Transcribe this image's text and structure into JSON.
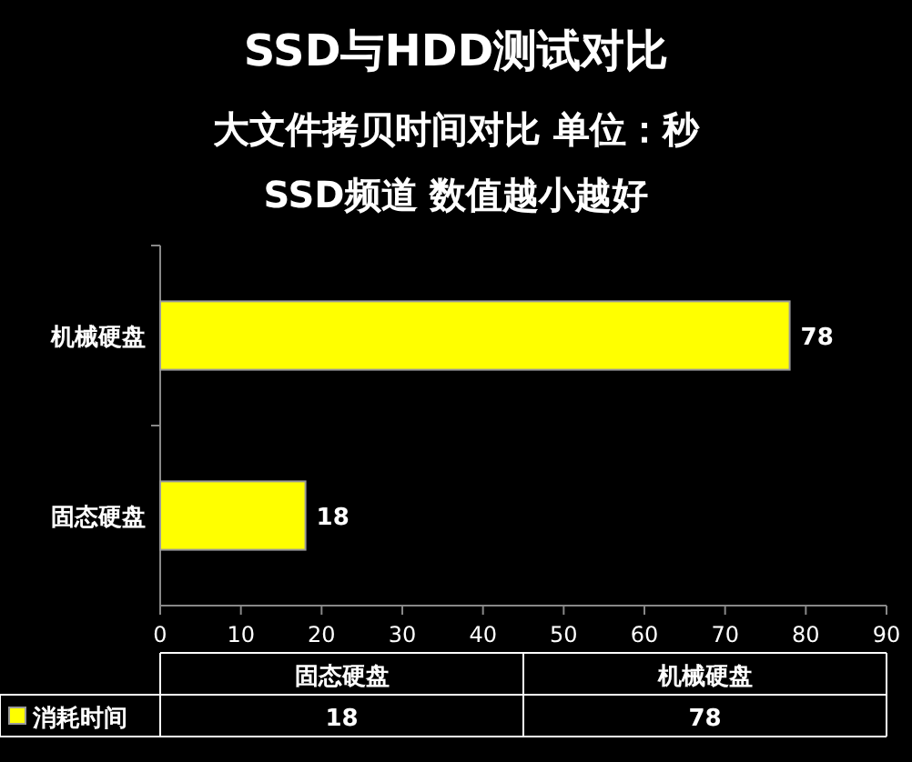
{
  "chart_data": [
    {
      "type": "bar",
      "orientation": "horizontal",
      "title": "SSD与HDD测试对比",
      "subtitle": "大文件拷贝时间对比  单位：秒",
      "annotations": [
        "SSD频道   数值越小越好"
      ],
      "categories": [
        "机械硬盘",
        "固态硬盘"
      ],
      "series": [
        {
          "color": "#ffff00",
          "values": [
            78,
            18
          ]
        }
      ],
      "xlim": [
        0,
        90
      ],
      "xticks": [
        0,
        10,
        20,
        30,
        40,
        50,
        60,
        70,
        80,
        90
      ],
      "grid": false,
      "data_labels": true
    },
    {
      "type": "other",
      "categories": [
        "固态硬盘",
        "机械硬盘"
      ],
      "series": [
        {
          "name": "消耗时间",
          "color": "#ffff00",
          "values": [
            18,
            78
          ]
        }
      ],
      "data_labels": true,
      "legend": "left"
    }
  ]
}
